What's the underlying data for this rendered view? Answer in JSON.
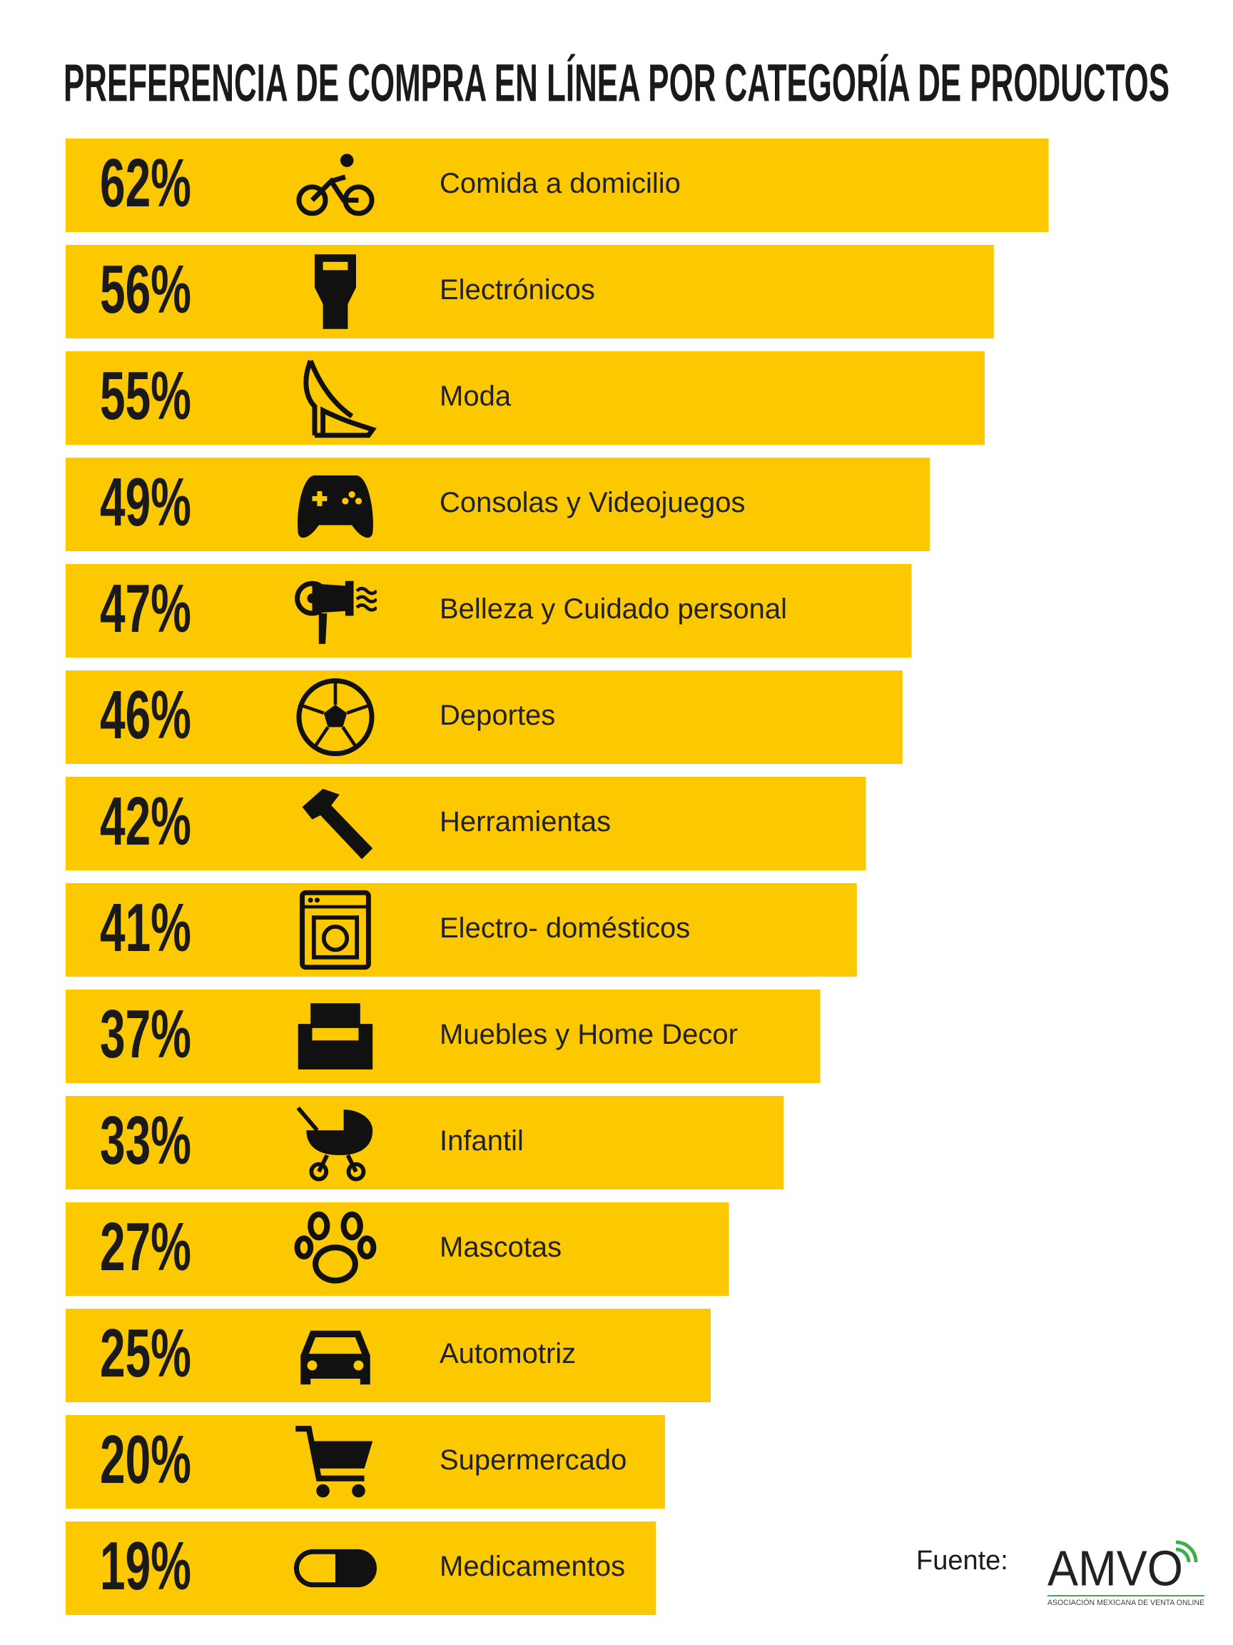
{
  "chart_data": {
    "type": "bar",
    "orientation": "horizontal",
    "title": "PREFERENCIA DE COMPRA EN LÍNEA POR CATEGORÍA DE PRODUCTOS",
    "categories": [
      "Comida a domicilio",
      "Electrónicos",
      "Moda",
      "Consolas y Videojuegos",
      "Belleza y Cuidado personal",
      "Deportes",
      "Herramientas",
      "Electro- domésticos",
      "Muebles y Home Decor",
      "Infantil",
      "Mascotas",
      "Automotriz",
      "Supermercado",
      "Medicamentos"
    ],
    "values": [
      62,
      56,
      55,
      49,
      47,
      46,
      42,
      41,
      37,
      33,
      27,
      25,
      20,
      19
    ],
    "value_labels": [
      "62%",
      "56%",
      "55%",
      "49%",
      "47%",
      "46%",
      "42%",
      "41%",
      "37%",
      "33%",
      "27%",
      "25%",
      "20%",
      "19%"
    ],
    "color": "#fcc800"
  },
  "source": {
    "label": "Fuente:",
    "logo": "AMVO",
    "logo_subtitle": "ASOCIACIÓN MEXICANA DE VENTA ONLINE"
  }
}
